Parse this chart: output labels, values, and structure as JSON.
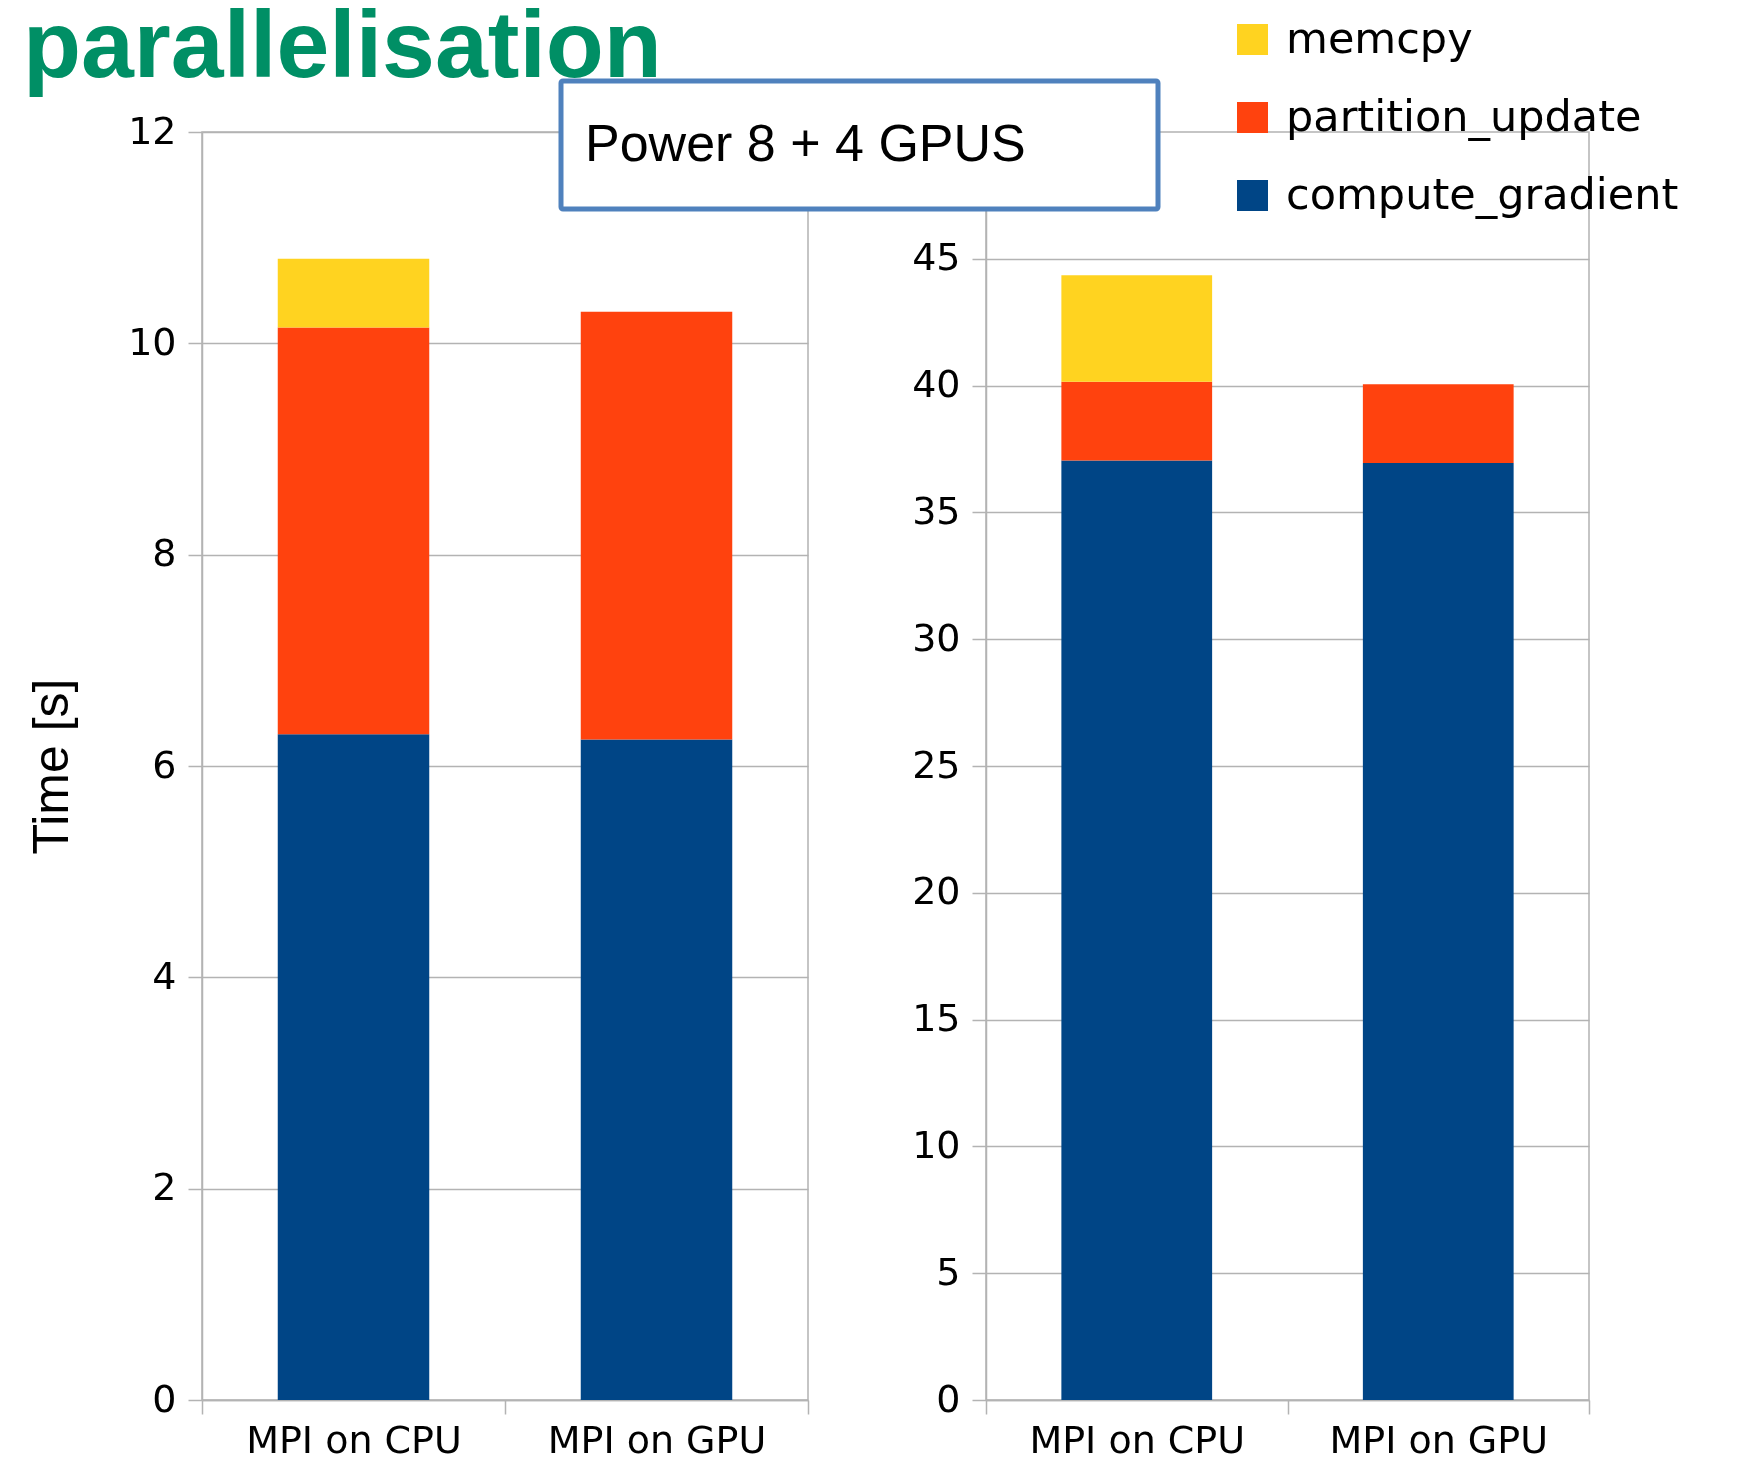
{
  "chart_data": [
    {
      "type": "bar",
      "title": "parallelisation",
      "ylabel": "Time [s]",
      "stacked": true,
      "categories": [
        "MPI on CPU",
        "MPI on GPU"
      ],
      "series": [
        {
          "color": "#004586",
          "values": [
            6.3,
            6.25
          ]
        },
        {
          "color": "#ff420e",
          "values": [
            3.85,
            4.05
          ]
        },
        {
          "color": "#ffd320",
          "values": [
            0.65,
            null
          ]
        }
      ],
      "ylim": [
        0,
        12
      ],
      "yticks": [
        0,
        2,
        4,
        6,
        8,
        10,
        12
      ],
      "grid": "y"
    },
    {
      "type": "bar",
      "stacked": true,
      "annotations": [
        "Power 8 + 4 GPUS"
      ],
      "categories": [
        "MPI on CPU",
        "MPI on GPU"
      ],
      "series": [
        {
          "name": "compute_gradient",
          "color": "#004586",
          "values": [
            37.05,
            36.95
          ]
        },
        {
          "name": "partition_update",
          "color": "#ff420e",
          "values": [
            3.1,
            3.1
          ]
        },
        {
          "name": "memcpy",
          "color": "#ffd320",
          "values": [
            4.2,
            null
          ]
        }
      ],
      "ylim": [
        0,
        50
      ],
      "yticks": [
        0,
        5,
        10,
        15,
        20,
        25,
        30,
        35,
        40,
        45
      ],
      "grid": "y",
      "legend": "top right"
    }
  ]
}
